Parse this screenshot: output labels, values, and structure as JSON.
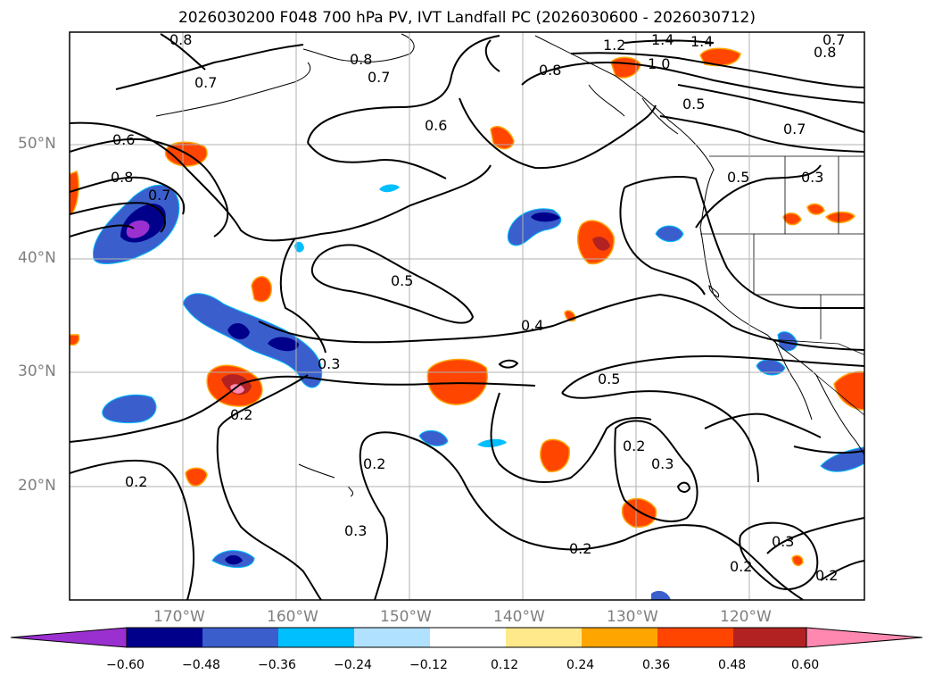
{
  "title": "2026030200 F048 700 hPa PV, IVT Landfall PC (2026030600 - 2026030712)",
  "lat_labels": [
    "50°N",
    "40°N",
    "30°N",
    "20°N"
  ],
  "lon_labels": [
    "170°W",
    "160°W",
    "150°W",
    "140°W",
    "130°W",
    "120°W"
  ],
  "contour_labels": [
    "0.8",
    "0.7",
    "0.8",
    "0.7",
    "0.6",
    "1.2",
    "1.4",
    "1.4",
    "1.0",
    "0.7",
    "0.8",
    "0.8",
    "0.6",
    "0.5",
    "0.8",
    "0.7",
    "0.7",
    "0.5",
    "0.3",
    "0.5",
    "0.4",
    "0.3",
    "0.5",
    "0.2",
    "0.2",
    "0.2",
    "0.3",
    "0.2",
    "0.3",
    "0.2",
    "0.3",
    "0.2",
    "0.2"
  ],
  "colorbar": {
    "ticks": [
      "−0.60",
      "−0.48",
      "−0.36",
      "−0.24",
      "−0.12",
      "0.12",
      "0.24",
      "0.36",
      "0.48",
      "0.60"
    ],
    "colors": [
      "#9b30d0",
      "#00008b",
      "#3a5fcd",
      "#00bfff",
      "#b0e2ff",
      "#ffffff",
      "#ffe98a",
      "#ffa500",
      "#ff4500",
      "#b22222",
      "#ff88b0",
      "#ff88b0"
    ]
  },
  "colors": {
    "anomaly_neg_1": "#3a5fcd",
    "anomaly_neg_2": "#00008b",
    "anomaly_pos_1": "#ff4500",
    "anomaly_pos_2": "#b22222"
  }
}
